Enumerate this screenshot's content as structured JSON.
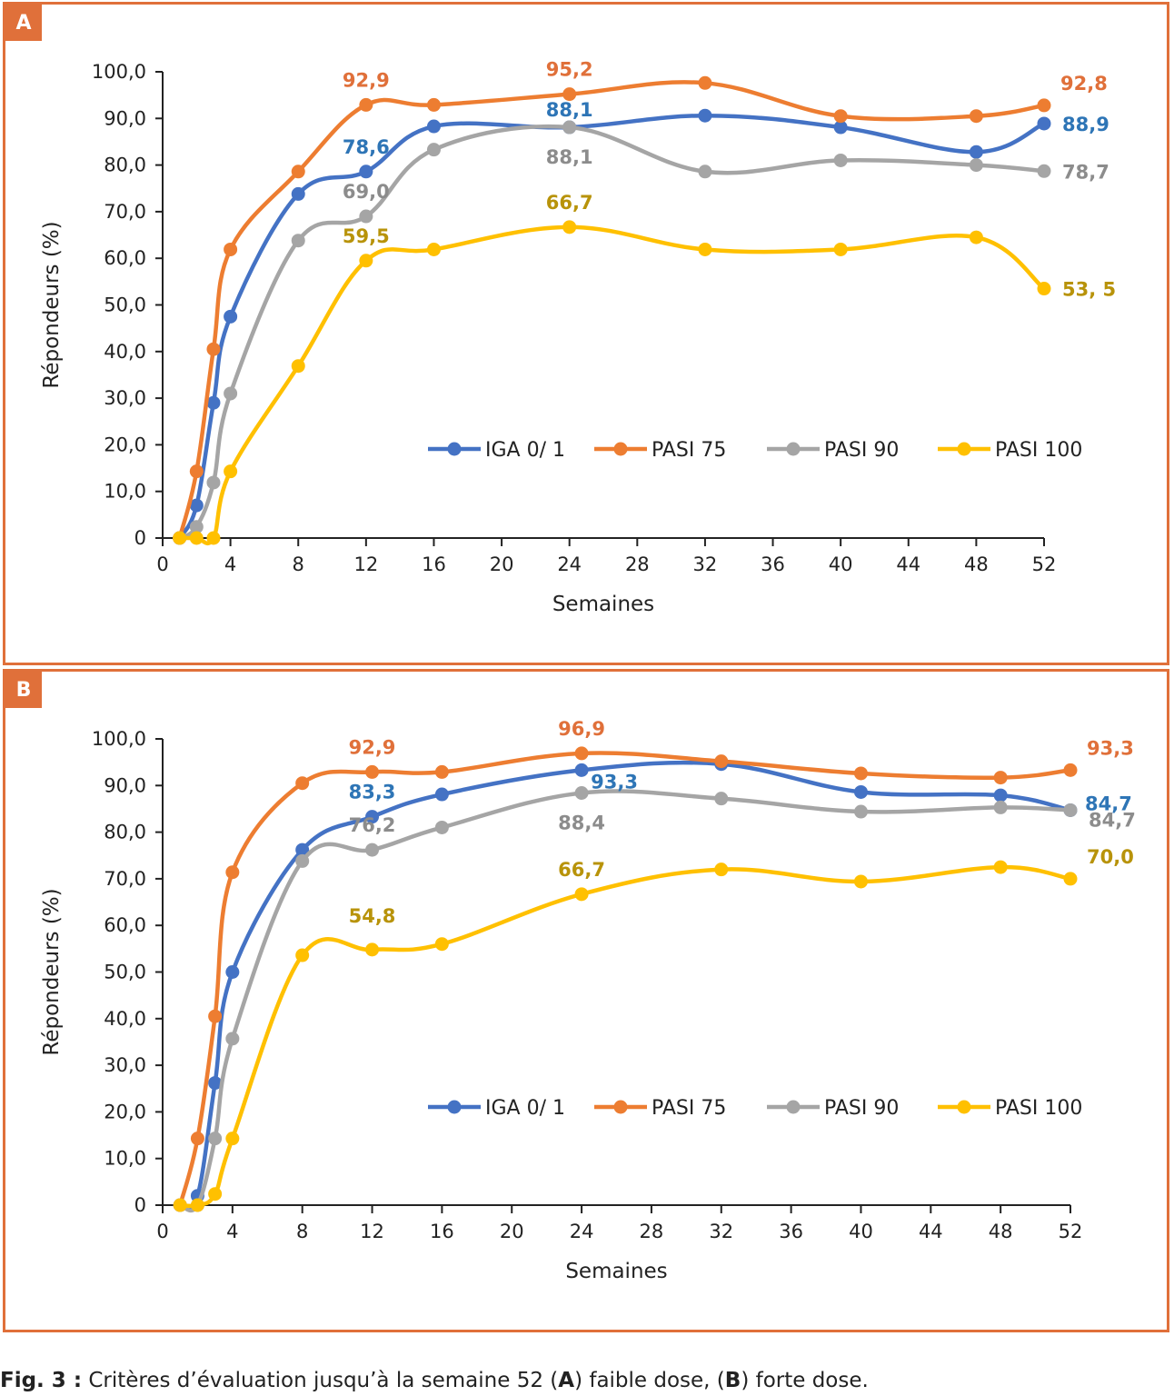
{
  "panels": [
    {
      "tag": "A",
      "chart_data": {
        "type": "line",
        "xlabel": "Semaines",
        "ylabel": "Répondeurs (%)",
        "xlim": [
          0,
          52
        ],
        "ylim": [
          0,
          100
        ],
        "xticks": [
          "0",
          "4",
          "8",
          "12",
          "16",
          "20",
          "24",
          "28",
          "32",
          "36",
          "40",
          "44",
          "48",
          "52"
        ],
        "yticks": [
          "0",
          "10,0",
          "20,0",
          "30,0",
          "40,0",
          "50,0",
          "60,0",
          "70,0",
          "80,0",
          "90,0",
          "100,0"
        ],
        "legend_position": "inside-lower-right",
        "grid": false,
        "series": [
          {
            "name": "IGA 0/ 1",
            "color": "#4472c4",
            "x": [
              1,
              2,
              3,
              4,
              8,
              12,
              16,
              24,
              32,
              40,
              48,
              52
            ],
            "y": [
              0,
              7,
              29,
              47.5,
              73.8,
              78.6,
              88.3,
              88.1,
              90.6,
              88.1,
              82.8,
              88.9
            ]
          },
          {
            "name": "PASI 75",
            "color": "#ed7d31",
            "x": [
              1,
              2,
              3,
              4,
              8,
              12,
              16,
              24,
              32,
              40,
              48,
              52
            ],
            "y": [
              0,
              14.3,
              40.5,
              61.9,
              78.6,
              92.9,
              92.9,
              95.2,
              97.6,
              90.5,
              90.5,
              92.8
            ]
          },
          {
            "name": "PASI 90",
            "color": "#a5a5a5",
            "x": [
              1,
              2,
              3,
              4,
              8,
              12,
              16,
              24,
              32,
              40,
              48,
              52
            ],
            "y": [
              0,
              2.4,
              11.9,
              31,
              63.8,
              69.0,
              83.3,
              88.1,
              78.6,
              81,
              80,
              78.7
            ]
          },
          {
            "name": "PASI 100",
            "color": "#ffc000",
            "x": [
              1,
              2,
              3,
              4,
              8,
              12,
              16,
              24,
              32,
              40,
              48,
              52
            ],
            "y": [
              0,
              0,
              0,
              14.3,
              36.9,
              59.5,
              61.9,
              66.7,
              61.9,
              61.9,
              64.5,
              53.5
            ]
          }
        ],
        "annotations": [
          {
            "text": "92,9",
            "x": 12,
            "y": 92.9,
            "color": "#e0703a",
            "pos": "above"
          },
          {
            "text": "95,2",
            "x": 24,
            "y": 95.2,
            "color": "#e0703a",
            "pos": "above"
          },
          {
            "text": "92,8",
            "x": 52,
            "y": 92.8,
            "color": "#e0703a",
            "pos": "right-up"
          },
          {
            "text": "78,6",
            "x": 12,
            "y": 78.6,
            "color": "#2e75b6",
            "pos": "above"
          },
          {
            "text": "88,1",
            "x": 24,
            "y": 88.1,
            "color": "#2e75b6",
            "pos": "above-near"
          },
          {
            "text": "88,9",
            "x": 52,
            "y": 88.9,
            "color": "#2e75b6",
            "pos": "right"
          },
          {
            "text": "69,0",
            "x": 12,
            "y": 69.0,
            "color": "#8c8c8c",
            "pos": "above"
          },
          {
            "text": "88,1",
            "x": 24,
            "y": 88.1,
            "color": "#8c8c8c",
            "pos": "below"
          },
          {
            "text": "78,7",
            "x": 52,
            "y": 78.7,
            "color": "#8c8c8c",
            "pos": "right"
          },
          {
            "text": "59,5",
            "x": 12,
            "y": 59.5,
            "color": "#b8930a",
            "pos": "above"
          },
          {
            "text": "66,7",
            "x": 24,
            "y": 66.7,
            "color": "#b8930a",
            "pos": "above"
          },
          {
            "text": "53, 5",
            "x": 52,
            "y": 53.5,
            "color": "#b8930a",
            "pos": "right"
          }
        ]
      }
    },
    {
      "tag": "B",
      "chart_data": {
        "type": "line",
        "xlabel": "Semaines",
        "ylabel": "Répondeurs (%)",
        "xlim": [
          0,
          52
        ],
        "ylim": [
          0,
          100
        ],
        "xticks": [
          "0",
          "4",
          "8",
          "12",
          "16",
          "20",
          "24",
          "28",
          "32",
          "36",
          "40",
          "44",
          "48",
          "52"
        ],
        "yticks": [
          "0",
          "10,0",
          "20,0",
          "30,0",
          "40,0",
          "50,0",
          "60,0",
          "70,0",
          "80,0",
          "90,0",
          "100,0"
        ],
        "legend_position": "inside-lower-right",
        "grid": false,
        "series": [
          {
            "name": "IGA 0/ 1",
            "color": "#4472c4",
            "x": [
              1,
              2,
              3,
              4,
              8,
              12,
              16,
              24,
              32,
              40,
              48,
              52
            ],
            "y": [
              0,
              2,
              26.2,
              50,
              76.2,
              83.3,
              88.1,
              93.3,
              94.6,
              88.6,
              87.9,
              84.7
            ]
          },
          {
            "name": "PASI 75",
            "color": "#ed7d31",
            "x": [
              1,
              2,
              3,
              4,
              8,
              12,
              16,
              24,
              32,
              40,
              48,
              52
            ],
            "y": [
              0,
              14.3,
              40.5,
              71.4,
              90.5,
              92.9,
              92.9,
              96.9,
              95.2,
              92.6,
              91.7,
              93.3
            ]
          },
          {
            "name": "PASI 90",
            "color": "#a5a5a5",
            "x": [
              1,
              2,
              3,
              4,
              8,
              12,
              16,
              24,
              32,
              40,
              48,
              52
            ],
            "y": [
              0,
              0,
              14.3,
              35.7,
              73.8,
              76.2,
              81,
              88.4,
              87.2,
              84.4,
              85.3,
              84.7
            ]
          },
          {
            "name": "PASI 100",
            "color": "#ffc000",
            "x": [
              1,
              2,
              3,
              4,
              8,
              12,
              16,
              24,
              32,
              40,
              48,
              52
            ],
            "y": [
              0,
              0,
              2.4,
              14.3,
              53.6,
              54.8,
              56,
              66.7,
              72,
              69.4,
              72.5,
              70.0
            ]
          }
        ],
        "annotations": [
          {
            "text": "92,9",
            "x": 12,
            "y": 92.9,
            "color": "#e0703a",
            "pos": "above"
          },
          {
            "text": "96,9",
            "x": 24,
            "y": 96.9,
            "color": "#e0703a",
            "pos": "above"
          },
          {
            "text": "93,3",
            "x": 52,
            "y": 93.3,
            "color": "#e0703a",
            "pos": "right-up"
          },
          {
            "text": "83,3",
            "x": 12,
            "y": 83.3,
            "color": "#2e75b6",
            "pos": "above"
          },
          {
            "text": "93,3",
            "x": 24,
            "y": 93.3,
            "color": "#2e75b6",
            "pos": "below-right"
          },
          {
            "text": "84,7",
            "x": 52,
            "y": 84.7,
            "color": "#2e75b6",
            "pos": "right-up-small"
          },
          {
            "text": "76,2",
            "x": 12,
            "y": 76.2,
            "color": "#8c8c8c",
            "pos": "above"
          },
          {
            "text": "88,4",
            "x": 24,
            "y": 88.4,
            "color": "#8c8c8c",
            "pos": "below"
          },
          {
            "text": "84,7",
            "x": 52,
            "y": 84.7,
            "color": "#8c8c8c",
            "pos": "right-down"
          },
          {
            "text": "54,8",
            "x": 12,
            "y": 54.8,
            "color": "#b8930a",
            "pos": "above-far"
          },
          {
            "text": "66,7",
            "x": 24,
            "y": 66.7,
            "color": "#b8930a",
            "pos": "above"
          },
          {
            "text": "70,0",
            "x": 52,
            "y": 70.0,
            "color": "#b8930a",
            "pos": "right-up"
          }
        ]
      }
    }
  ],
  "caption": {
    "prefix": "Fig. 3 :",
    "text_1": " Critères d’évaluation jusqu’à la semaine 52 (",
    "bold_a": "A",
    "text_2": ") faible dose, (",
    "bold_b": "B",
    "text_3": ") forte dose."
  }
}
